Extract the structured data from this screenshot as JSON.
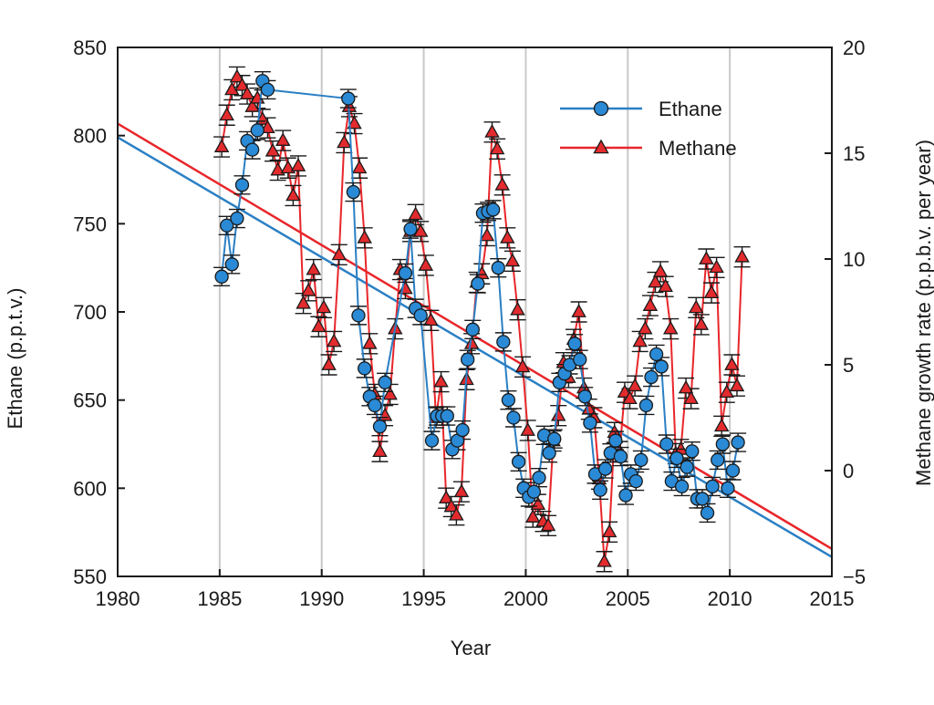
{
  "chart_data": {
    "type": "line",
    "xlabel": "Year",
    "ylabel_left": "Ethane (p.p.t.v.)",
    "ylabel_right": "Methane growth rate (p.p.b.v. per year)",
    "xlim": [
      1980,
      2015
    ],
    "ylim_left": [
      550,
      850
    ],
    "ylim_right": [
      -5,
      20
    ],
    "x_ticks": [
      "1980",
      "1985",
      "1990",
      "1995",
      "2000",
      "2005",
      "2010",
      "2015"
    ],
    "y_left_ticks": [
      "550",
      "600",
      "650",
      "700",
      "750",
      "800",
      "850"
    ],
    "y_right_ticks": [
      "−5",
      "0",
      "5",
      "10",
      "15",
      "20"
    ],
    "grid": "vertical lines at 1985, 1990, 1995, 2000, 2005, 2010",
    "legend_position": "top-right",
    "legend": [
      {
        "name": "Ethane",
        "marker": "circle"
      },
      {
        "name": "Methane",
        "marker": "triangle"
      }
    ],
    "colors": {
      "ethane_line": "#2a7fc4",
      "ethane_marker": "#2a8ad6",
      "methane_line": "#e8262a",
      "methane_marker": "#e32b2e",
      "marker_edge": "#1a1a1a",
      "grid": "#c8c8c8"
    },
    "series": [
      {
        "name": "Ethane",
        "axis": "left",
        "x": [
          1985.1,
          1985.35,
          1985.6,
          1985.85,
          1986.1,
          1986.35,
          1986.6,
          1986.85,
          1987.1,
          1987.35,
          1991.3,
          1991.55,
          1991.8,
          1992.1,
          1992.35,
          1992.6,
          1992.85,
          1993.1,
          1994.1,
          1994.35,
          1994.6,
          1994.85,
          1995.4,
          1995.65,
          1995.9,
          1996.15,
          1996.4,
          1996.65,
          1996.9,
          1997.15,
          1997.4,
          1997.65,
          1997.9,
          1998.15,
          1998.4,
          1998.65,
          1998.9,
          1999.15,
          1999.4,
          1999.65,
          1999.9,
          2000.15,
          2000.4,
          2000.65,
          2000.9,
          2001.15,
          2001.4,
          2001.65,
          2001.9,
          2002.15,
          2002.4,
          2002.65,
          2002.9,
          2003.15,
          2003.4,
          2003.65,
          2003.9,
          2004.15,
          2004.4,
          2004.65,
          2004.9,
          2005.15,
          2005.4,
          2005.65,
          2005.9,
          2006.15,
          2006.4,
          2006.65,
          2006.9,
          2007.15,
          2007.4,
          2007.65,
          2007.9,
          2008.15,
          2008.4,
          2008.65,
          2008.9,
          2009.15,
          2009.4,
          2009.65,
          2009.9,
          2010.15,
          2010.4
        ],
        "values": [
          720,
          749,
          727,
          753,
          772,
          797,
          792,
          803,
          831,
          826,
          821,
          768,
          698,
          668,
          652,
          647,
          635,
          660,
          722,
          747,
          702,
          698,
          627,
          641,
          641,
          641,
          622,
          627,
          633,
          673,
          690,
          716,
          756,
          757,
          758,
          725,
          683,
          650,
          640,
          615,
          600,
          595,
          598,
          606,
          630,
          620,
          628,
          660,
          665,
          670,
          682,
          673,
          652,
          637,
          608,
          599,
          611,
          620,
          627,
          618,
          596,
          608,
          604,
          616,
          647,
          663,
          676,
          669,
          625,
          604,
          617,
          601,
          612,
          621,
          594,
          594,
          586,
          601,
          616,
          625,
          600,
          610,
          626
        ]
      },
      {
        "name": "Methane",
        "axis": "right",
        "x": [
          1985.1,
          1985.35,
          1985.6,
          1985.85,
          1986.1,
          1986.35,
          1986.6,
          1986.85,
          1987.1,
          1987.35,
          1987.6,
          1987.85,
          1988.1,
          1988.35,
          1988.6,
          1988.85,
          1989.1,
          1989.35,
          1989.6,
          1989.85,
          1990.1,
          1990.35,
          1990.6,
          1990.85,
          1991.1,
          1991.35,
          1991.6,
          1991.85,
          1992.1,
          1992.35,
          1992.6,
          1992.85,
          1993.1,
          1993.35,
          1993.6,
          1993.85,
          1994.1,
          1994.35,
          1994.6,
          1994.85,
          1995.1,
          1995.35,
          1995.6,
          1995.85,
          1996.1,
          1996.35,
          1996.6,
          1996.85,
          1997.1,
          1997.35,
          1997.6,
          1997.85,
          1998.1,
          1998.35,
          1998.6,
          1998.85,
          1999.1,
          1999.35,
          1999.6,
          1999.85,
          2000.1,
          2000.35,
          2000.6,
          2000.85,
          2001.1,
          2001.35,
          2001.6,
          2001.85,
          2002.1,
          2002.35,
          2002.6,
          2002.85,
          2003.1,
          2003.35,
          2003.6,
          2003.85,
          2004.1,
          2004.35,
          2004.6,
          2004.85,
          2005.1,
          2005.35,
          2005.6,
          2005.85,
          2006.1,
          2006.35,
          2006.6,
          2006.85,
          2007.1,
          2007.35,
          2007.6,
          2007.85,
          2008.1,
          2008.35,
          2008.6,
          2008.85,
          2009.1,
          2009.35,
          2009.6,
          2009.85,
          2010.1,
          2010.35,
          2010.6
        ],
        "values": [
          15.3,
          16.8,
          18.0,
          18.6,
          18.2,
          17.8,
          17.2,
          17.6,
          16.6,
          16.2,
          15.1,
          14.2,
          15.6,
          14.3,
          13.0,
          14.4,
          7.9,
          8.5,
          9.5,
          6.8,
          7.7,
          5.0,
          6.1,
          10.2,
          15.5,
          17.2,
          16.4,
          14.3,
          11.0,
          6.0,
          3.6,
          0.9,
          2.6,
          3.6,
          6.7,
          9.5,
          8.6,
          11.3,
          12.1,
          11.3,
          9.7,
          7.1,
          2.5,
          4.2,
          -1.3,
          -1.7,
          -2.1,
          -1.0,
          4.3,
          6.0,
          8.9,
          9.3,
          11.1,
          16.0,
          15.2,
          13.5,
          11.0,
          9.9,
          7.6,
          4.9,
          1.9,
          -2.2,
          -1.6,
          -2.4,
          -2.6,
          1.4,
          2.6,
          5.1,
          4.4,
          6.2,
          7.5,
          3.9,
          2.9,
          2.5,
          -0.4,
          -4.3,
          -2.9,
          1.8,
          0.9,
          3.7,
          3.4,
          4.0,
          6.1,
          6.7,
          7.8,
          8.9,
          9.4,
          8.7,
          6.7,
          0.8,
          1.0,
          3.9,
          3.4,
          7.7,
          6.9,
          10.0,
          8.4,
          9.6,
          2.1,
          3.7,
          5.0,
          4.0,
          10.1
        ]
      },
      {
        "name": "",
        "axis": "left",
        "x": [
          1980,
          2015
        ],
        "values": [
          799,
          561
        ]
      },
      {
        "name": "",
        "axis": "right",
        "x": [
          1980,
          2015
        ],
        "values": [
          16.4,
          -3.7
        ]
      }
    ]
  }
}
